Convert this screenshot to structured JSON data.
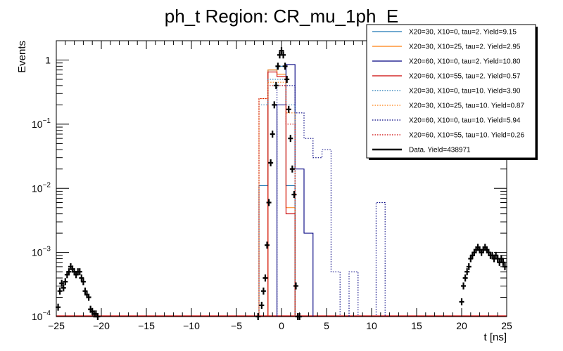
{
  "chart_data": {
    "type": "line",
    "title": "ph_t Region: CR_mu_1ph_E",
    "xlabel": "t [ns]",
    "ylabel": "Events",
    "xlim": [
      -25,
      25
    ],
    "ylim": [
      0.0001,
      2
    ],
    "yscale": "log",
    "x_ticks": [
      -25,
      -20,
      -15,
      -10,
      -5,
      0,
      5,
      10,
      15,
      20,
      25
    ],
    "y_ticks": [
      {
        "value": 0.0001,
        "base": "10",
        "exp": "−4"
      },
      {
        "value": 0.001,
        "base": "10",
        "exp": "−3"
      },
      {
        "value": 0.01,
        "base": "10",
        "exp": "−2"
      },
      {
        "value": 0.1,
        "base": "10",
        "exp": "−1"
      },
      {
        "value": 1,
        "base": "1",
        "exp": ""
      }
    ],
    "legend_position": "top-right",
    "series": [
      {
        "name": "X20=30, X10=0, tau=2. Yield=9.15",
        "color": "#1f77b4",
        "style": "solid",
        "edges": [
          -2.5,
          -1.5,
          -0.5,
          0.5,
          1.5
        ],
        "values": [
          0.011,
          0.7,
          0.8,
          0.011
        ]
      },
      {
        "name": "X20=30, X10=25, tau=2. Yield=2.95",
        "color": "#ff7f0e",
        "style": "solid",
        "edges": [
          -1.5,
          -0.5,
          0.5,
          1.5
        ],
        "values": [
          0.7,
          0.6,
          0.005
        ]
      },
      {
        "name": "X20=60, X10=0, tau=2. Yield=10.80",
        "color": "#000080",
        "style": "solid",
        "edges": [
          -0.5,
          0.5,
          1.5,
          2.5,
          3.5
        ],
        "values": [
          0.2,
          0.85,
          0.02,
          0.002
        ]
      },
      {
        "name": "X20=60, X10=55, tau=2. Yield=0.57",
        "color": "#cc0000",
        "style": "solid",
        "edges": [
          -1.5,
          -0.5,
          0.5,
          1.5
        ],
        "values": [
          0.65,
          0.55,
          0.004
        ]
      },
      {
        "name": "X20=30, X10=0, tau=10. Yield=3.90",
        "color": "#1f77b4",
        "style": "dotted",
        "edges": [
          -2.5,
          -1.5,
          -0.5,
          0.5,
          1.5
        ],
        "values": [
          0.2,
          0.5,
          0.5,
          0.2
        ]
      },
      {
        "name": "X20=30, X10=25, tau=10. Yield=0.87",
        "color": "#ff7f0e",
        "style": "dotted",
        "edges": [
          -2.5,
          -1.5,
          -0.5,
          0.5,
          1.5
        ],
        "values": [
          0.25,
          0.45,
          0.45,
          0.15
        ]
      },
      {
        "name": "X20=60, X10=0, tau=10. Yield=5.94",
        "color": "#000080",
        "style": "dotted",
        "edges": [
          -0.5,
          0.5,
          1.5,
          2.5,
          3.5,
          4.5,
          5.5,
          6.5,
          7.5,
          8.5,
          9.5,
          10.5,
          11.5
        ],
        "values": [
          0.4,
          0.4,
          0.15,
          0.06,
          0.03,
          0.04,
          0.0005,
          0.0001,
          0.0005,
          0.0001,
          0.0001,
          0.006
        ]
      },
      {
        "name": "X20=60, X10=55, tau=10. Yield=0.26",
        "color": "#cc0000",
        "style": "dotted",
        "edges": [
          -3.5,
          -2.5,
          -1.5,
          -0.5,
          0.5,
          1.5
        ],
        "values": [
          0.0001,
          0.25,
          0.4,
          0.4,
          0.1
        ]
      },
      {
        "name": "Data. Yield=438971",
        "color": "#000000",
        "style": "markers",
        "x": [
          -24.8,
          -24.6,
          -24.4,
          -24.2,
          -24.0,
          -23.8,
          -23.6,
          -23.4,
          -23.2,
          -23.0,
          -22.8,
          -22.6,
          -22.4,
          -22.2,
          -22.0,
          -21.8,
          -21.6,
          -21.4,
          -21.2,
          -21.0,
          -20.8,
          -20.6,
          -20.4,
          -2.6,
          -2.2,
          -2.0,
          -1.8,
          -1.6,
          -1.4,
          -1.2,
          -1.0,
          -0.8,
          -0.6,
          -0.4,
          -0.2,
          0.0,
          0.2,
          0.4,
          0.6,
          0.8,
          1.0,
          1.2,
          1.4,
          1.6,
          1.8,
          2.0,
          20.0,
          20.2,
          20.4,
          20.6,
          20.8,
          21.0,
          21.2,
          21.4,
          21.6,
          21.8,
          22.0,
          22.2,
          22.4,
          22.6,
          22.8,
          23.0,
          23.2,
          23.4,
          23.6,
          23.8,
          24.0,
          24.2,
          24.4,
          24.6,
          24.8
        ],
        "values": [
          0.00014,
          0.00025,
          0.00033,
          0.00028,
          0.00035,
          0.00045,
          0.0005,
          0.0006,
          0.00055,
          0.0005,
          0.00045,
          0.0005,
          0.0005,
          0.0004,
          0.00035,
          0.00025,
          0.00022,
          0.0002,
          0.00013,
          0.00012,
          0.00011,
          0.00011,
          0.0001,
          0.0001,
          0.00015,
          0.00025,
          0.0004,
          0.0013,
          0.006,
          0.025,
          0.07,
          0.2,
          0.4,
          0.8,
          1.2,
          1.4,
          1.2,
          0.8,
          0.5,
          0.17,
          0.06,
          0.02,
          0.008,
          0.0003,
          0.0001,
          0.0001,
          0.00017,
          0.0003,
          0.0004,
          0.0005,
          0.0006,
          0.0008,
          0.0009,
          0.001,
          0.0011,
          0.0012,
          0.0011,
          0.001,
          0.0011,
          0.0012,
          0.0011,
          0.001,
          0.0009,
          0.0009,
          0.0008,
          0.0009,
          0.0008,
          0.0007,
          0.0008,
          0.0007,
          0.0006
        ]
      }
    ]
  }
}
